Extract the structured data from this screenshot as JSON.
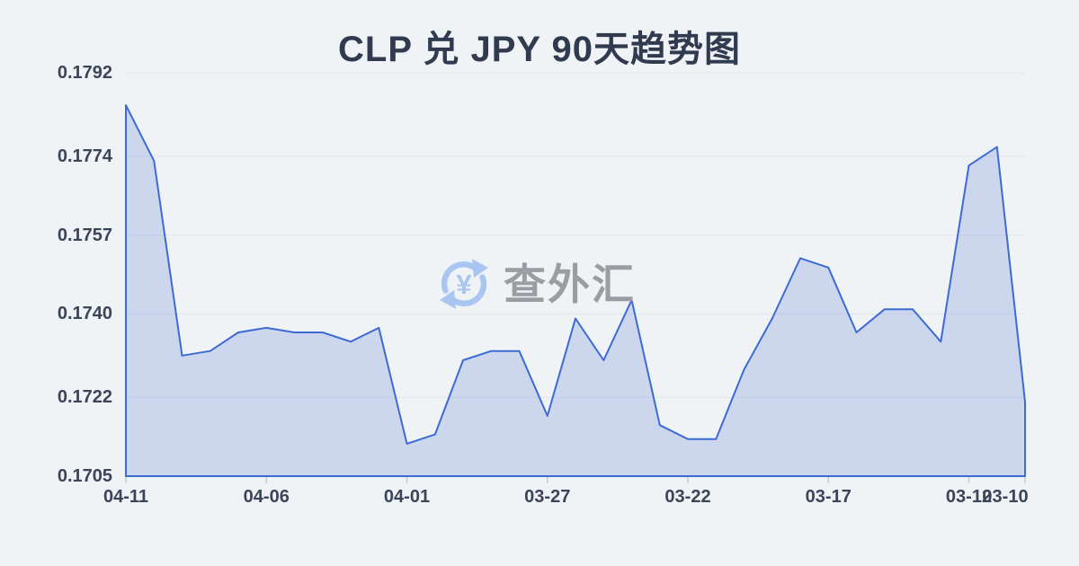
{
  "title": "CLP 兑 JPY 90天趋势图",
  "watermark": {
    "icon": "currency-refresh-icon",
    "text": "查外汇"
  },
  "colors": {
    "background": "#f0f3f6",
    "title_text": "#313b4f",
    "axis_text": "#3a4559",
    "grid_line": "#e3e7ed",
    "series_line": "#3d6bd3",
    "series_fill": "rgba(61,107,211,0.20)",
    "tick_mark": "#c8cdd5",
    "watermark_text": "#9a9da1",
    "watermark_icon": "#a9c6f2"
  },
  "chart_data": {
    "type": "area",
    "title": "CLP 兑 JPY 90天趋势图",
    "xlabel": "",
    "ylabel": "",
    "grid": true,
    "legend_position": "none",
    "x": [
      "04-11",
      "04-10",
      "04-09",
      "04-08",
      "04-07",
      "04-06",
      "04-05",
      "04-04",
      "04-03",
      "04-02",
      "04-01",
      "03-31",
      "03-30",
      "03-29",
      "03-28",
      "03-27",
      "03-26",
      "03-25",
      "03-24",
      "03-23",
      "03-22",
      "03-21",
      "03-20",
      "03-19",
      "03-18",
      "03-17",
      "03-16",
      "03-15",
      "03-14",
      "03-13",
      "03-12",
      "03-11",
      "03-10"
    ],
    "values": [
      0.1785,
      0.1773,
      0.1731,
      0.1732,
      0.1736,
      0.1737,
      0.1736,
      0.1736,
      0.1734,
      0.1737,
      0.1712,
      0.1714,
      0.173,
      0.1732,
      0.1732,
      0.1718,
      0.1739,
      0.173,
      0.1743,
      0.1716,
      0.1713,
      0.1713,
      0.1728,
      0.1739,
      0.1752,
      0.175,
      0.1736,
      0.1741,
      0.1741,
      0.1734,
      0.1772,
      0.1776,
      0.1721
    ],
    "xtick_labels": [
      "04-11",
      "04-06",
      "04-01",
      "03-27",
      "03-22",
      "03-17",
      "03-12",
      "03-10"
    ],
    "xtick_indices": [
      0,
      5,
      10,
      15,
      20,
      25,
      30,
      32
    ],
    "ytick_labels": [
      "0.1792",
      "0.1774",
      "0.1757",
      "0.1740",
      "0.1722",
      "0.1705"
    ],
    "ylim": [
      0.1705,
      0.1792
    ]
  }
}
